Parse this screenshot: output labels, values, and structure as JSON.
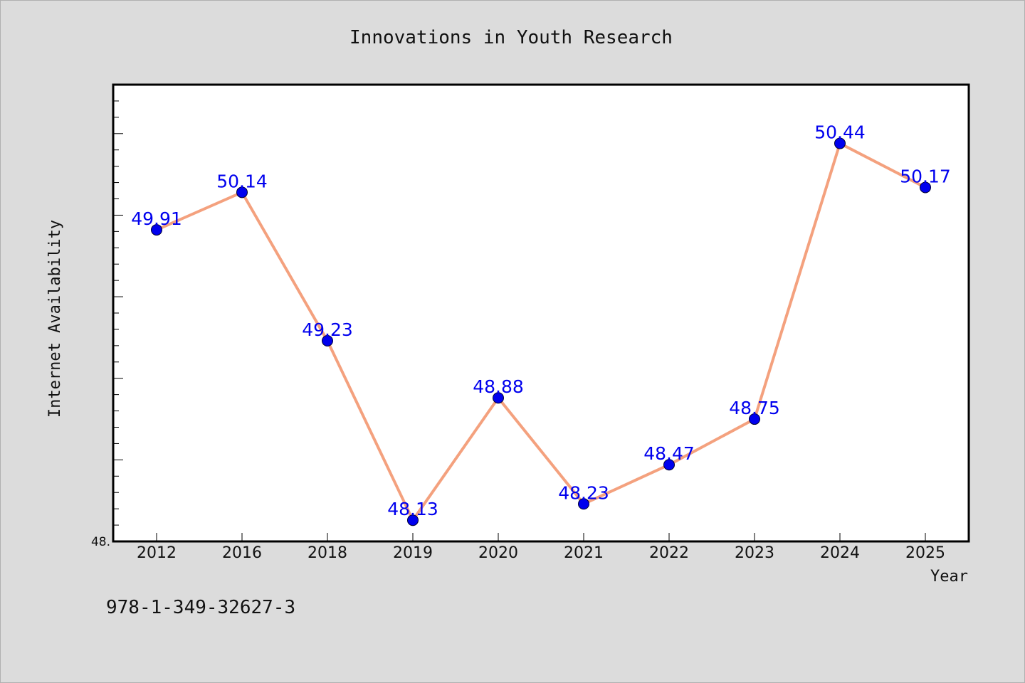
{
  "chart_data": {
    "type": "line",
    "title": "Innovations in Youth Research",
    "xlabel": "Year",
    "ylabel": "Internet Availability",
    "categories": [
      "2012",
      "2016",
      "2018",
      "2019",
      "2020",
      "2021",
      "2022",
      "2023",
      "2024",
      "2025"
    ],
    "series": [
      {
        "values": [
          49.91,
          50.14,
          49.23,
          48.13,
          48.88,
          48.23,
          48.47,
          48.75,
          50.44,
          50.17
        ],
        "labels": [
          "49.91",
          "50.14",
          "49.23",
          "48.13",
          "48.88",
          "48.23",
          "48.47",
          "48.75",
          "50.44",
          "50.17"
        ]
      }
    ],
    "ylim": [
      48.0,
      50.8
    ],
    "ytick_labels": [
      {
        "value": 48.0,
        "label": "48."
      }
    ],
    "grid": false,
    "line_color": "#f4a17e",
    "marker_color": "#0000ee",
    "label_color": "#0000ee"
  },
  "footer": {
    "isbn": "978-1-349-32627-3"
  }
}
